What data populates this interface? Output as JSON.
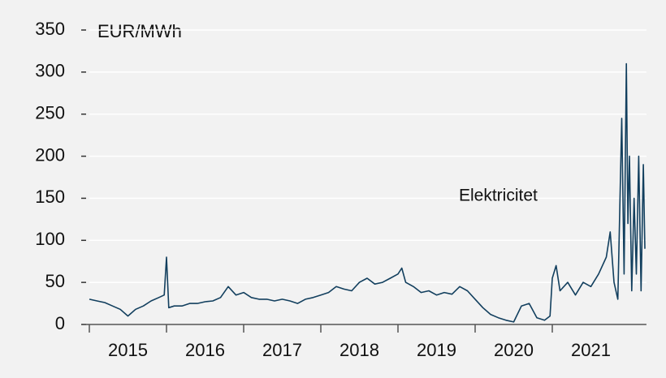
{
  "chart_data": {
    "type": "line",
    "y_axis_label": "EUR/MWh",
    "background": "#f2f2f2",
    "grid": true,
    "xlim": [
      2015,
      2022.22
    ],
    "ylim": [
      0,
      350
    ],
    "yticks": [
      0,
      50,
      100,
      150,
      200,
      250,
      300,
      350
    ],
    "xticks": [
      2015,
      2016,
      2017,
      2018,
      2019,
      2020,
      2021
    ],
    "series": [
      {
        "name": "Elektricitet",
        "color": "#123f5e",
        "x": [
          2015.0,
          2015.1,
          2015.2,
          2015.3,
          2015.4,
          2015.5,
          2015.6,
          2015.7,
          2015.8,
          2015.9,
          2015.97,
          2016.0,
          2016.03,
          2016.1,
          2016.2,
          2016.3,
          2016.4,
          2016.5,
          2016.6,
          2016.7,
          2016.8,
          2016.9,
          2017.0,
          2017.1,
          2017.2,
          2017.3,
          2017.4,
          2017.5,
          2017.6,
          2017.7,
          2017.8,
          2017.9,
          2018.0,
          2018.1,
          2018.2,
          2018.3,
          2018.4,
          2018.5,
          2018.6,
          2018.7,
          2018.8,
          2018.9,
          2019.0,
          2019.05,
          2019.1,
          2019.2,
          2019.3,
          2019.4,
          2019.5,
          2019.6,
          2019.7,
          2019.8,
          2019.9,
          2020.0,
          2020.1,
          2020.2,
          2020.3,
          2020.4,
          2020.5,
          2020.6,
          2020.7,
          2020.8,
          2020.9,
          2020.97,
          2021.0,
          2021.05,
          2021.1,
          2021.2,
          2021.3,
          2021.4,
          2021.5,
          2021.6,
          2021.7,
          2021.75,
          2021.8,
          2021.85,
          2021.9,
          2021.93,
          2021.96,
          2021.98,
          2022.0,
          2022.03,
          2022.06,
          2022.09,
          2022.12,
          2022.15,
          2022.18,
          2022.2
        ],
        "values": [
          30,
          28,
          26,
          22,
          18,
          10,
          18,
          22,
          28,
          32,
          35,
          80,
          20,
          22,
          22,
          25,
          25,
          27,
          28,
          32,
          45,
          35,
          38,
          32,
          30,
          30,
          28,
          30,
          28,
          25,
          30,
          32,
          35,
          38,
          45,
          42,
          40,
          50,
          55,
          48,
          50,
          55,
          60,
          67,
          50,
          45,
          38,
          40,
          35,
          38,
          36,
          45,
          40,
          30,
          20,
          12,
          8,
          5,
          3,
          22,
          25,
          8,
          5,
          10,
          55,
          70,
          40,
          50,
          35,
          50,
          45,
          60,
          80,
          110,
          50,
          30,
          245,
          60,
          310,
          120,
          200,
          40,
          150,
          60,
          200,
          40,
          190,
          90
        ]
      }
    ]
  }
}
